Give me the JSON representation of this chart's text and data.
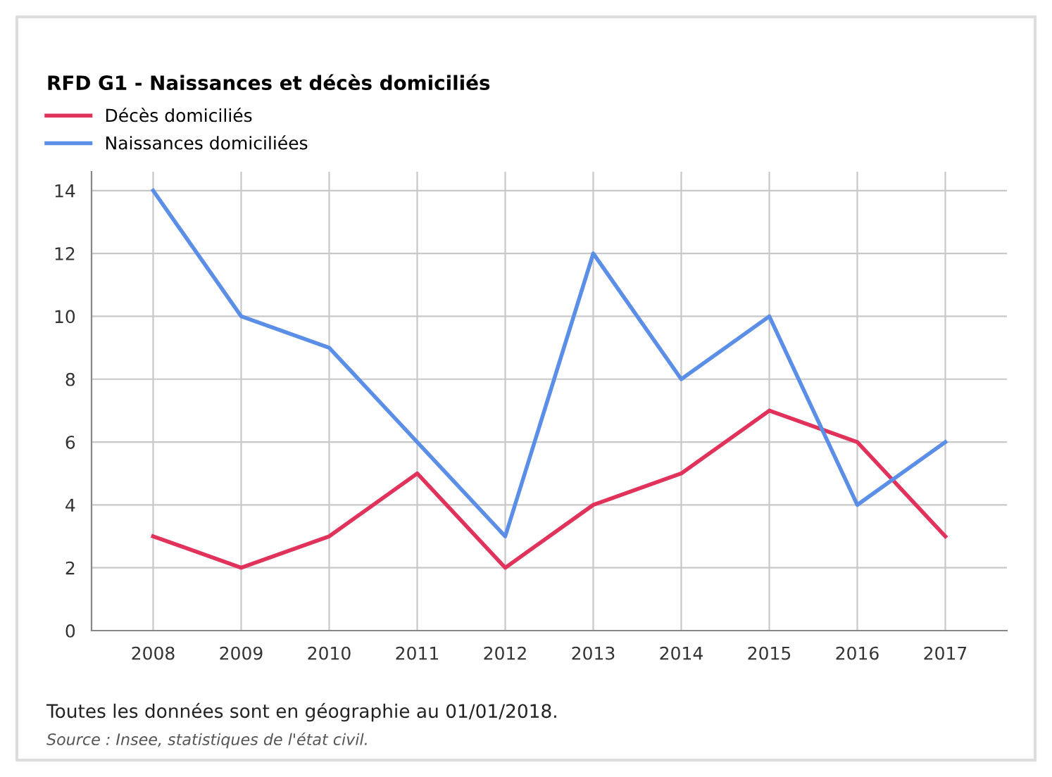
{
  "chart_data": {
    "type": "line",
    "title": "RFD G1 - Naissances et décès domiciliés",
    "categories": [
      "2008",
      "2009",
      "2010",
      "2011",
      "2012",
      "2013",
      "2014",
      "2015",
      "2016",
      "2017"
    ],
    "series": [
      {
        "name": "Décès domiciliés",
        "color": "#e0325a",
        "values": [
          3,
          2,
          3,
          5,
          2,
          4,
          5,
          7,
          6,
          3
        ]
      },
      {
        "name": "Naissances domiciliées",
        "color": "#5b8ee6",
        "values": [
          14,
          10,
          9,
          6,
          3,
          12,
          8,
          10,
          4,
          6
        ]
      }
    ],
    "ylim": [
      0,
      14.6
    ],
    "yticks": [
      0,
      2,
      4,
      6,
      8,
      10,
      12,
      14
    ],
    "grid": true,
    "legend": "top left",
    "line_style": "solid",
    "marker": "none",
    "annotations": [
      "Toutes les données sont en géographie au 01/01/2018.",
      "Source : Insee, statistiques de l'état civil."
    ]
  }
}
